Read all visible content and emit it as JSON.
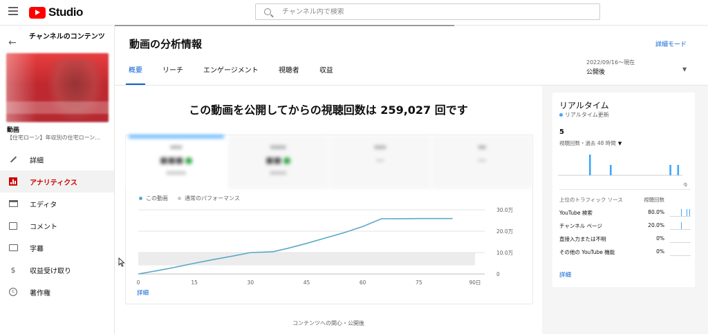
{
  "app": {
    "name": "Studio"
  },
  "search": {
    "placeholder": "チャンネル内で検索"
  },
  "sidebar": {
    "title": "チャンネルのコンテンツ",
    "video_label": "動画",
    "video_title": "【住宅ローン】年収別の住宅ローン...",
    "items": [
      {
        "label": "詳細",
        "icon": "pencil-icon",
        "active": false
      },
      {
        "label": "アナリティクス",
        "icon": "analytics-icon",
        "active": true
      },
      {
        "label": "エディタ",
        "icon": "editor-icon",
        "active": false
      },
      {
        "label": "コメント",
        "icon": "comment-icon",
        "active": false
      },
      {
        "label": "字幕",
        "icon": "subtitles-icon",
        "active": false
      },
      {
        "label": "収益受け取り",
        "icon": "dollar-icon",
        "active": false
      },
      {
        "label": "著作権",
        "icon": "copyright-icon",
        "active": false
      }
    ]
  },
  "header": {
    "title": "動画の分析情報",
    "detail_mode": "詳細モード",
    "tabs": [
      "概要",
      "リーチ",
      "エンゲージメント",
      "視聴者",
      "収益"
    ],
    "active_tab": 0,
    "date_range": "2022/09/16～現在",
    "date_label": "公開後"
  },
  "overview": {
    "headline": "この動画を公開してからの視聴回数は 259,027 回です",
    "legend": [
      "この動画",
      "通常のパフォーマンス"
    ],
    "detail_link": "詳細",
    "footer_note": "コンテンツへの関心・公開後"
  },
  "chart_data": {
    "type": "line",
    "series": [
      {
        "name": "この動画",
        "x": [
          0,
          5,
          10,
          15,
          20,
          25,
          30,
          33,
          36,
          40,
          45,
          50,
          55,
          60,
          65,
          70,
          75,
          80,
          84
        ],
        "values": [
          0,
          15000,
          32000,
          50000,
          67000,
          83000,
          100000,
          102000,
          104000,
          120000,
          143000,
          168000,
          193000,
          222000,
          258000,
          258500,
          259000,
          259000,
          259027
        ]
      }
    ],
    "band": {
      "name": "通常のパフォーマンス",
      "y_low": 40000,
      "y_high": 100000
    },
    "xticks": [
      "0",
      "15",
      "30",
      "45",
      "60",
      "75",
      "90日"
    ],
    "xtick_values": [
      0,
      15,
      30,
      45,
      60,
      75,
      90
    ],
    "yticks": [
      "0",
      "10.0万",
      "20.0万",
      "30.0万"
    ],
    "ytick_values": [
      0,
      100000,
      200000,
      300000
    ],
    "xlim": [
      0,
      90
    ],
    "ylim": [
      0,
      300000
    ],
    "line_color": "#5aa8c8",
    "band_color": "#ececec",
    "grid": true
  },
  "realtime": {
    "title": "リアルタイム",
    "status": "リアルタイム更新",
    "count": "5",
    "caption": "視聴回数・過去 48 時間",
    "now_label": "今",
    "bars": [
      0,
      0,
      0,
      0,
      0,
      0,
      0,
      0,
      0,
      0,
      0,
      0,
      0,
      0,
      0,
      0,
      0,
      0,
      0,
      0,
      0,
      0,
      0,
      0,
      0,
      0,
      0,
      0,
      0,
      0,
      0,
      0,
      0,
      0,
      0,
      0,
      0,
      0,
      0,
      0,
      0,
      0,
      0,
      0,
      0,
      0,
      0,
      0
    ],
    "bar_values": [
      0,
      0,
      0,
      0,
      0,
      0,
      0,
      0,
      0,
      0,
      0,
      0,
      3,
      0,
      0,
      0,
      0,
      0,
      0,
      0,
      1.5,
      0,
      0,
      0,
      0,
      0,
      0,
      0,
      0,
      0,
      0,
      0,
      0,
      0,
      0,
      0,
      0,
      0,
      0,
      0,
      0,
      0,
      0,
      1.5,
      0,
      0,
      1.5,
      0
    ],
    "bar_color": "#3ea6ff",
    "traffic_header": "上位のトラフィック ソース",
    "traffic_col": "視聴回数",
    "sources": [
      {
        "name": "YouTube 検索",
        "pct": "80.0%",
        "spark": [
          0,
          0,
          0,
          0,
          1,
          0,
          1,
          1
        ]
      },
      {
        "name": "チャンネル ページ",
        "pct": "20.0%",
        "spark": [
          0,
          0,
          0,
          0,
          1,
          0,
          0,
          0
        ]
      },
      {
        "name": "直接入力または不明",
        "pct": "0%",
        "spark": [
          0,
          0,
          0,
          0,
          0,
          0,
          0,
          0
        ]
      },
      {
        "name": "その他の YouTube 機能",
        "pct": "0%",
        "spark": [
          0,
          0,
          0,
          0,
          0,
          0,
          0,
          0
        ]
      }
    ],
    "detail_link": "詳細"
  }
}
